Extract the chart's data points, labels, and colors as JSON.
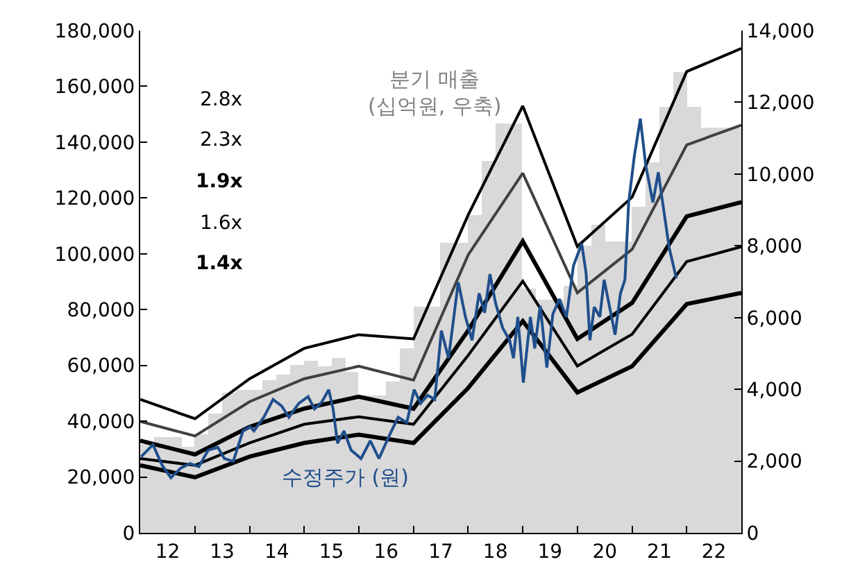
{
  "chart_data": {
    "type": "line",
    "annotations": [
      "2.8x",
      "2.3x",
      "1.9x",
      "1.6x",
      "1.4x"
    ],
    "xlim": [
      "2012",
      "2023"
    ],
    "xticks": [
      {
        "value": "2012",
        "label": null
      },
      {
        "value": "2013",
        "label": null
      },
      {
        "value": "2014",
        "label": null
      },
      {
        "value": "2015",
        "label": null
      },
      {
        "value": "2016",
        "label": null
      },
      {
        "value": "2017",
        "label": null
      },
      {
        "value": "2018",
        "label": null
      },
      {
        "value": "2019",
        "label": null
      },
      {
        "value": "2020",
        "label": null
      },
      {
        "value": "2021",
        "label": null
      },
      {
        "value": "2022",
        "label": null
      },
      {
        "value": "2012-07-02",
        "label": "12"
      },
      {
        "value": "2013-07-02",
        "label": "13"
      },
      {
        "value": "2014-07-02",
        "label": "14"
      },
      {
        "value": "2015-07-02",
        "label": "15"
      },
      {
        "value": "2016-07-02",
        "label": "16"
      },
      {
        "value": "2017-07-02",
        "label": "17"
      },
      {
        "value": "2018-07-02",
        "label": "18"
      },
      {
        "value": "2019-07-02",
        "label": "19"
      },
      {
        "value": "2020-07-02",
        "label": "20"
      },
      {
        "value": "2021-07-02",
        "label": "21"
      },
      {
        "value": "2022-07-02",
        "label": "22"
      }
    ],
    "ylim": [
      0,
      180000
    ],
    "yticks": [
      0,
      {
        "value": 20000,
        "label": "20,000"
      },
      {
        "value": 40000,
        "label": "40,000"
      },
      {
        "value": 60000,
        "label": "60,000"
      },
      {
        "value": 80000,
        "label": "80,000"
      },
      {
        "value": 100000,
        "label": "100,000"
      },
      {
        "value": 120000,
        "label": "120,000"
      },
      {
        "value": 140000,
        "label": "140,000"
      },
      {
        "value": 160000,
        "label": "160,000"
      },
      {
        "value": 180000,
        "label": "180,000"
      }
    ],
    "y2lim": [
      0,
      14000
    ],
    "y2ticks": [
      0,
      {
        "value": 2000,
        "label": "2,000"
      },
      {
        "value": 4000,
        "label": "4,000"
      },
      {
        "value": 6000,
        "label": "6,000"
      },
      {
        "value": 8000,
        "label": "8,000"
      },
      {
        "value": 10000,
        "label": "10,000"
      },
      {
        "value": 12000,
        "label": "12,000"
      },
      {
        "value": 14000,
        "label": "14,000"
      }
    ],
    "legend": false,
    "marker": "none",
    "series": [
      {
        "name": "분기 매출\n(십억원, 우축)",
        "type": "bar",
        "axis": "y2",
        "color": "#d9d9d9",
        "x": [
          "2012-02-15",
          "2012-05-16",
          "2012-08-16",
          "2012-11-15",
          "2013-02-15",
          "2013-05-16",
          "2013-08-16",
          "2013-11-15",
          "2014-02-15",
          "2014-05-16",
          "2014-08-16",
          "2014-11-15",
          "2015-02-15",
          "2015-05-16",
          "2015-08-16",
          "2015-11-15",
          "2016-02-15",
          "2016-05-16",
          "2016-08-16",
          "2016-11-15",
          "2017-02-15",
          "2017-05-16",
          "2017-08-16",
          "2017-11-15",
          "2018-02-15",
          "2018-05-16",
          "2018-08-16",
          "2018-11-15",
          "2019-02-15",
          "2019-05-16",
          "2019-08-16",
          "2019-11-15",
          "2020-02-15",
          "2020-05-16",
          "2020-08-16",
          "2020-11-15",
          "2021-02-15",
          "2021-05-16",
          "2021-08-16",
          "2021-11-15",
          "2022-02-15",
          "2022-05-16",
          "2022-08-16",
          "2022-11-15"
        ],
        "values": [
          2490,
          2650,
          2650,
          2380,
          2760,
          3340,
          3910,
          3990,
          3990,
          4260,
          4410,
          4680,
          4800,
          4640,
          4870,
          4490,
          3840,
          3840,
          4220,
          5140,
          6290,
          6290,
          8090,
          8090,
          8860,
          10360,
          11390,
          11390,
          6790,
          6480,
          6480,
          6870,
          8020,
          8590,
          8130,
          8130,
          9090,
          10320,
          11890,
          12850,
          11890,
          11280,
          11280,
          11280
        ]
      },
      {
        "color": "#000000",
        "x": [
          "2012",
          "2013",
          "2014",
          "2015",
          "2016",
          "2017",
          "2018",
          "2019",
          "2020",
          "2021",
          "2022",
          "2023"
        ],
        "values": [
          47800,
          40900,
          55200,
          66100,
          71000,
          69500,
          113900,
          153000,
          102600,
          120300,
          165300,
          173600
        ]
      },
      {
        "color": "#404040",
        "x": [
          "2012",
          "2013",
          "2014",
          "2015",
          "2016",
          "2017",
          "2018",
          "2019",
          "2020",
          "2021",
          "2022",
          "2023"
        ],
        "values": [
          39900,
          34700,
          47000,
          55200,
          59700,
          54700,
          99600,
          128900,
          86000,
          101600,
          139000,
          146100
        ]
      },
      {
        "color": "#000000",
        "x": [
          "2012",
          "2013",
          "2014",
          "2015",
          "2016",
          "2017",
          "2018",
          "2019",
          "2020",
          "2021",
          "2022",
          "2023"
        ],
        "values": [
          33000,
          28100,
          38000,
          44500,
          48800,
          44500,
          72500,
          104500,
          69500,
          82400,
          113400,
          118500
        ]
      },
      {
        "color": "#000000",
        "x": [
          "2012",
          "2013",
          "2014",
          "2015",
          "2016",
          "2017",
          "2018",
          "2019",
          "2020",
          "2021",
          "2022",
          "2023"
        ],
        "values": [
          26600,
          24200,
          32200,
          38900,
          41600,
          38900,
          63600,
          90200,
          59800,
          71200,
          97200,
          102500
        ]
      },
      {
        "color": "#000000",
        "x": [
          "2012",
          "2013",
          "2014",
          "2015",
          "2016",
          "2017",
          "2018",
          "2019",
          "2020",
          "2021",
          "2022",
          "2023"
        ],
        "values": [
          24200,
          19900,
          27300,
          32200,
          35200,
          32200,
          51900,
          75900,
          50300,
          59700,
          82000,
          86000
        ]
      },
      {
        "name": "수정주가 (원)",
        "color": "#1f4e8c",
        "x": [
          "2012-01-08",
          "2012-03-26",
          "2012-05-27",
          "2012-07-24",
          "2012-09-28",
          "2012-11-29",
          "2013-01-27",
          "2013-03-30",
          "2013-06-03",
          "2013-07-17",
          "2013-09-14",
          "2013-11-18",
          "2014-01-05",
          "2014-01-30",
          "2014-04-06",
          "2014-06-07",
          "2014-08-04",
          "2014-09-21",
          "2014-11-26",
          "2015-01-27",
          "2015-03-11",
          "2015-04-28",
          "2015-06-14",
          "2015-07-13",
          "2015-08-12",
          "2015-09-24",
          "2015-11-11",
          "2016-01-16",
          "2016-03-18",
          "2016-05-15",
          "2016-07-20",
          "2016-09-20",
          "2016-11-17",
          "2017-01-05",
          "2017-02-17",
          "2017-04-06",
          "2017-05-23",
          "2017-07-06",
          "2017-08-23",
          "2017-10-27",
          "2017-12-14",
          "2018-01-27",
          "2018-03-15",
          "2018-04-21",
          "2018-05-27",
          "2018-07-03",
          "2018-08-19",
          "2018-10-05",
          "2018-10-31",
          "2018-11-29",
          "2019-01-05",
          "2019-02-21",
          "2019-03-22",
          "2019-04-28",
          "2019-06-11",
          "2019-07-21",
          "2019-09-03",
          "2019-10-20",
          "2019-12-06",
          "2020-01-30",
          "2020-02-28",
          "2020-03-25",
          "2020-04-23",
          "2020-05-30",
          "2020-06-28",
          "2020-08-11",
          "2020-09-09",
          "2020-10-15",
          "2020-11-14",
          "2020-12-09",
          "2021-01-16",
          "2021-02-25",
          "2021-04-02",
          "2021-05-20",
          "2021-06-25",
          "2021-08-01",
          "2021-09-06",
          "2021-10-24"
        ],
        "values": [
          27300,
          31600,
          24200,
          19700,
          23200,
          24800,
          23700,
          29600,
          30600,
          26600,
          25600,
          36500,
          38000,
          36500,
          41400,
          47800,
          45400,
          41400,
          46400,
          48800,
          44400,
          46800,
          51300,
          44400,
          32100,
          36500,
          29600,
          26600,
          33000,
          26600,
          34500,
          41400,
          39500,
          51300,
          46400,
          49300,
          47800,
          72500,
          62600,
          89800,
          77400,
          69000,
          85800,
          78900,
          92700,
          82400,
          73500,
          69000,
          62600,
          77400,
          53800,
          77400,
          66100,
          81400,
          59200,
          78400,
          83800,
          77400,
          95700,
          103600,
          93200,
          69000,
          80900,
          77400,
          90700,
          78900,
          71000,
          85800,
          90700,
          118400,
          135100,
          148400,
          131700,
          118400,
          129200,
          115400,
          102100,
          91200
        ]
      }
    ]
  }
}
